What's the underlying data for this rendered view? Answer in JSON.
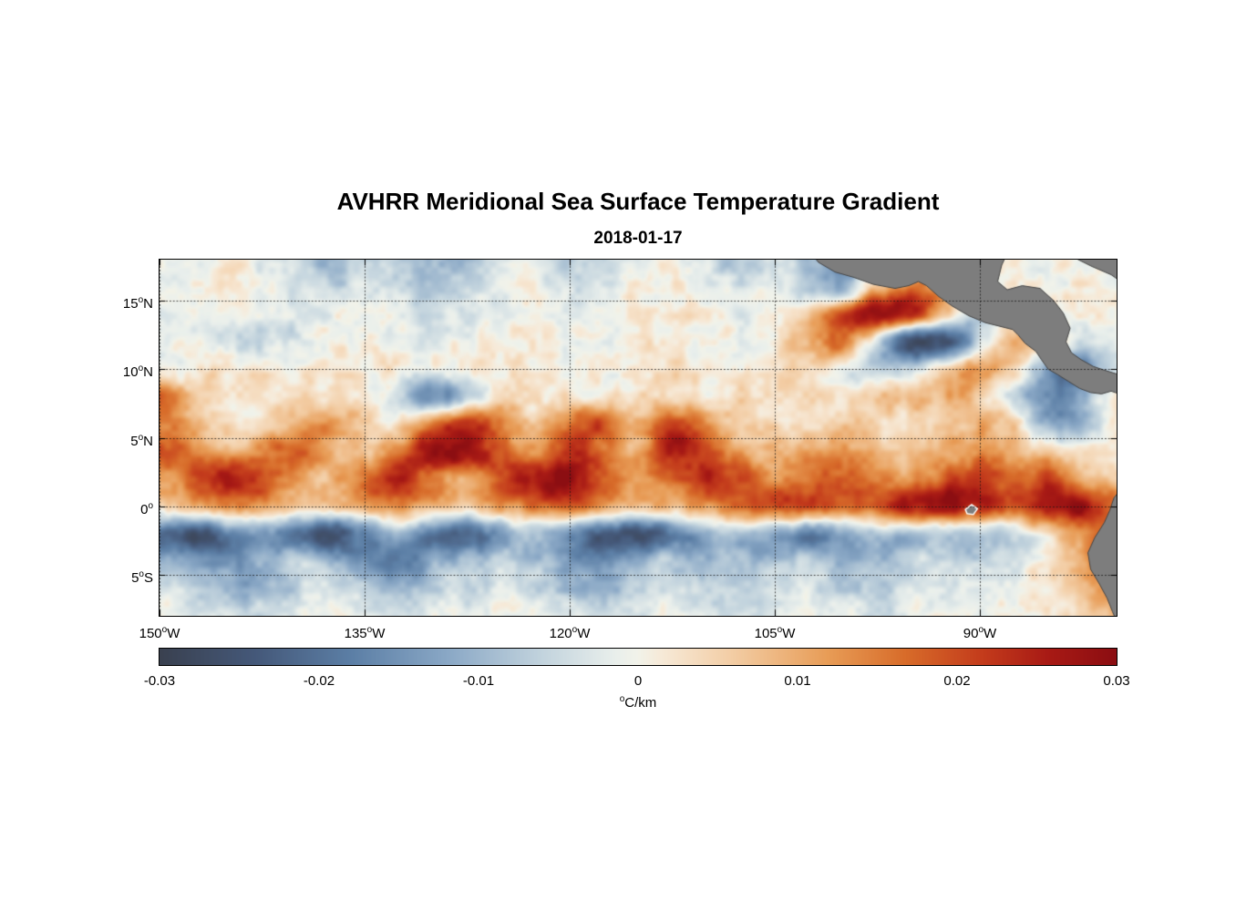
{
  "chart_data": {
    "type": "heatmap",
    "title": "AVHRR Meridional Sea Surface Temperature Gradient",
    "date": "2018-01-17",
    "lon_range": [
      -150,
      -80
    ],
    "lat_range": [
      -8,
      18
    ],
    "value_range": [
      -0.03,
      0.03
    ],
    "unit": "°C/km",
    "grid": {
      "value_scale": 0.001,
      "lons": [
        -150,
        -147.5,
        -145,
        -142.5,
        -140,
        -137.5,
        -135,
        -132.5,
        -130,
        -127.5,
        -125,
        -122.5,
        -120,
        -117.5,
        -115,
        -112.5,
        -110,
        -107.5,
        -105,
        -102.5,
        -100,
        -97.5,
        -95,
        -92.5,
        -90,
        -87.5,
        -85,
        -82.5,
        -80
      ],
      "lats": [
        18,
        16,
        14,
        12,
        10,
        8,
        6,
        4,
        2,
        0,
        -2,
        -4,
        -6,
        -8
      ],
      "values": [
        [
          -3,
          -1,
          0,
          -2,
          -6,
          -9,
          -6,
          -8,
          -11,
          -9,
          -4,
          -2,
          -8,
          -6,
          -2,
          -1,
          -5,
          -7,
          -3,
          -9,
          -14,
          -6,
          0,
          0,
          0,
          0,
          0,
          0,
          0
        ],
        [
          -1,
          1,
          2,
          0,
          -4,
          -6,
          -3,
          -5,
          -8,
          -6,
          -2,
          0,
          -5,
          -4,
          0,
          2,
          -1,
          -4,
          -2,
          -8,
          -12,
          8,
          16,
          10,
          3,
          0,
          0,
          0,
          0
        ],
        [
          -2,
          0,
          1,
          -1,
          -3,
          -2,
          0,
          -2,
          -4,
          -3,
          -1,
          1,
          -2,
          -2,
          1,
          2,
          0,
          -2,
          1,
          6,
          20,
          30,
          24,
          6,
          -8,
          5,
          2,
          0,
          0
        ],
        [
          -1,
          0,
          -3,
          -5,
          -4,
          -1,
          1,
          -1,
          -2,
          -1,
          0,
          1,
          0,
          -1,
          1,
          2,
          1,
          0,
          3,
          10,
          16,
          -6,
          -28,
          -24,
          -6,
          10,
          6,
          -4,
          -1
        ],
        [
          1,
          2,
          3,
          2,
          1,
          2,
          2,
          1,
          0,
          1,
          2,
          2,
          1,
          0,
          2,
          3,
          2,
          2,
          4,
          5,
          -2,
          -8,
          -4,
          6,
          13,
          5,
          -14,
          -18,
          -4
        ],
        [
          16,
          7,
          3,
          2,
          3,
          4,
          3,
          -6,
          -14,
          -8,
          4,
          3,
          2,
          1,
          3,
          4,
          3,
          4,
          5,
          4,
          3,
          5,
          7,
          9,
          6,
          -4,
          -16,
          -10,
          3
        ],
        [
          14,
          9,
          5,
          4,
          9,
          13,
          7,
          4,
          17,
          24,
          14,
          6,
          17,
          19,
          9,
          21,
          14,
          6,
          3,
          5,
          7,
          4,
          3,
          6,
          9,
          5,
          -12,
          -10,
          1
        ],
        [
          21,
          15,
          9,
          13,
          19,
          11,
          7,
          15,
          26,
          28,
          18,
          11,
          23,
          16,
          11,
          25,
          21,
          11,
          9,
          11,
          13,
          9,
          7,
          11,
          13,
          9,
          6,
          3,
          1
        ],
        [
          11,
          18,
          26,
          21,
          13,
          9,
          16,
          23,
          16,
          11,
          21,
          28,
          30,
          19,
          13,
          16,
          23,
          19,
          13,
          16,
          19,
          16,
          13,
          19,
          21,
          16,
          23,
          11,
          6
        ],
        [
          6,
          9,
          13,
          11,
          7,
          5,
          9,
          13,
          9,
          6,
          11,
          16,
          19,
          11,
          7,
          9,
          13,
          16,
          19,
          21,
          16,
          19,
          26,
          28,
          23,
          19,
          26,
          28,
          16
        ],
        [
          -21,
          -26,
          -19,
          -13,
          -21,
          -25,
          -16,
          -11,
          -19,
          -23,
          -13,
          -9,
          -16,
          -23,
          -26,
          -19,
          -11,
          -9,
          -13,
          -16,
          -11,
          -7,
          -9,
          -6,
          -9,
          -5,
          4,
          14,
          21
        ],
        [
          -9,
          -13,
          -16,
          -11,
          -7,
          -11,
          -16,
          -19,
          -13,
          -9,
          -6,
          -9,
          -13,
          -16,
          -11,
          -7,
          -9,
          -11,
          -7,
          -5,
          -9,
          -11,
          -6,
          -4,
          -6,
          -3,
          3,
          11,
          19
        ],
        [
          -4,
          -6,
          -9,
          -11,
          -6,
          -4,
          -7,
          -9,
          -6,
          -4,
          -3,
          -5,
          -9,
          -11,
          -7,
          -4,
          -6,
          -7,
          -5,
          -3,
          -6,
          -7,
          -4,
          -3,
          -4,
          -2,
          2,
          9,
          16
        ],
        [
          -1,
          -2,
          -4,
          -5,
          -2,
          -1,
          -3,
          -4,
          -2,
          -1,
          0,
          -2,
          -4,
          -5,
          -3,
          -1,
          -2,
          -3,
          -1,
          0,
          -2,
          -3,
          -1,
          0,
          -1,
          0,
          1,
          5,
          9
        ]
      ]
    },
    "land": {
      "color": "#7d7d7d",
      "outline": "#454545",
      "polygons": {
        "central_america": [
          [
            -102.6,
            18.8
          ],
          [
            -101.8,
            17.8
          ],
          [
            -100.6,
            17.1
          ],
          [
            -99.2,
            16.7
          ],
          [
            -97.8,
            16.2
          ],
          [
            -96.2,
            15.9
          ],
          [
            -95.2,
            16.1
          ],
          [
            -94.5,
            16.4
          ],
          [
            -93.9,
            16.1
          ],
          [
            -93.0,
            15.3
          ],
          [
            -92.0,
            14.6
          ],
          [
            -90.8,
            13.9
          ],
          [
            -89.6,
            13.4
          ],
          [
            -88.4,
            13.1
          ],
          [
            -87.6,
            12.9
          ],
          [
            -87.2,
            12.5
          ],
          [
            -86.7,
            11.9
          ],
          [
            -85.9,
            11.3
          ],
          [
            -85.5,
            10.7
          ],
          [
            -85.0,
            10.0
          ],
          [
            -84.3,
            9.6
          ],
          [
            -83.5,
            9.1
          ],
          [
            -82.7,
            8.6
          ],
          [
            -81.9,
            8.3
          ],
          [
            -81.1,
            8.2
          ],
          [
            -80.4,
            8.4
          ],
          [
            -79.8,
            8.2
          ],
          [
            -79.2,
            8.6
          ],
          [
            -79.0,
            9.2
          ],
          [
            -79.8,
            9.6
          ],
          [
            -80.8,
            9.9
          ],
          [
            -81.7,
            10.2
          ],
          [
            -82.6,
            10.7
          ],
          [
            -83.3,
            11.2
          ],
          [
            -83.7,
            12.0
          ],
          [
            -83.4,
            13.0
          ],
          [
            -83.9,
            14.1
          ],
          [
            -84.6,
            15.0
          ],
          [
            -85.6,
            15.9
          ],
          [
            -86.9,
            16.1
          ],
          [
            -88.0,
            15.8
          ],
          [
            -88.7,
            16.4
          ],
          [
            -88.4,
            17.6
          ],
          [
            -87.8,
            18.9
          ]
        ],
        "caribbean_corner": [
          [
            -84.6,
            19.2
          ],
          [
            -83.2,
            18.2
          ],
          [
            -81.8,
            17.5
          ],
          [
            -80.4,
            16.9
          ],
          [
            -79.4,
            16.2
          ],
          [
            -79.4,
            19.2
          ]
        ],
        "south_america": [
          [
            -79.4,
            1.6
          ],
          [
            -80.2,
            0.6
          ],
          [
            -80.5,
            -0.3
          ],
          [
            -80.9,
            -1.2
          ],
          [
            -81.6,
            -2.3
          ],
          [
            -82.1,
            -3.4
          ],
          [
            -81.9,
            -4.6
          ],
          [
            -81.3,
            -5.6
          ],
          [
            -80.7,
            -6.7
          ],
          [
            -80.3,
            -7.7
          ],
          [
            -80.0,
            -8.4
          ],
          [
            -79.4,
            -8.6
          ]
        ],
        "galapagos": [
          [
            -91.0,
            -0.25
          ],
          [
            -90.6,
            0.05
          ],
          [
            -90.25,
            -0.2
          ],
          [
            -90.5,
            -0.55
          ],
          [
            -90.9,
            -0.5
          ]
        ]
      }
    }
  },
  "axes": {
    "degree_mark": "o",
    "lat_ticks": [
      {
        "value": 15,
        "num": "15",
        "suffix": "N"
      },
      {
        "value": 10,
        "num": "10",
        "suffix": "N"
      },
      {
        "value": 5,
        "num": "5",
        "suffix": "N"
      },
      {
        "value": 0,
        "num": "0",
        "suffix": ""
      },
      {
        "value": -5,
        "num": "5",
        "suffix": "S"
      }
    ],
    "lon_ticks": [
      {
        "value": -150,
        "num": "150",
        "suffix": "W"
      },
      {
        "value": -135,
        "num": "135",
        "suffix": "W"
      },
      {
        "value": -120,
        "num": "120",
        "suffix": "W"
      },
      {
        "value": -105,
        "num": "105",
        "suffix": "W"
      },
      {
        "value": -90,
        "num": "90",
        "suffix": "W"
      }
    ],
    "gridline_color": "rgba(20,20,20,0.8)"
  },
  "colorbar": {
    "min": -0.03,
    "max": 0.03,
    "tick_values": [
      -0.03,
      -0.02,
      -0.01,
      0,
      0.01,
      0.02,
      0.03
    ],
    "tick_labels": [
      "-0.03",
      "-0.02",
      "-0.01",
      "0",
      "0.01",
      "0.02",
      "0.03"
    ],
    "unit_sup": "o",
    "unit_text": "C/km",
    "stops": [
      [
        0.0,
        "#3a4150"
      ],
      [
        0.1,
        "#45597a"
      ],
      [
        0.2,
        "#5c7fa6"
      ],
      [
        0.3,
        "#8aa8c6"
      ],
      [
        0.4,
        "#c3d4de"
      ],
      [
        0.475,
        "#e9efec"
      ],
      [
        0.5,
        "#f2f3ea"
      ],
      [
        0.525,
        "#f7ead8"
      ],
      [
        0.6,
        "#f3cda4"
      ],
      [
        0.7,
        "#e89c56"
      ],
      [
        0.78,
        "#d86c2a"
      ],
      [
        0.86,
        "#c43c1c"
      ],
      [
        0.93,
        "#a81a15"
      ],
      [
        1.0,
        "#8c0e12"
      ]
    ]
  }
}
